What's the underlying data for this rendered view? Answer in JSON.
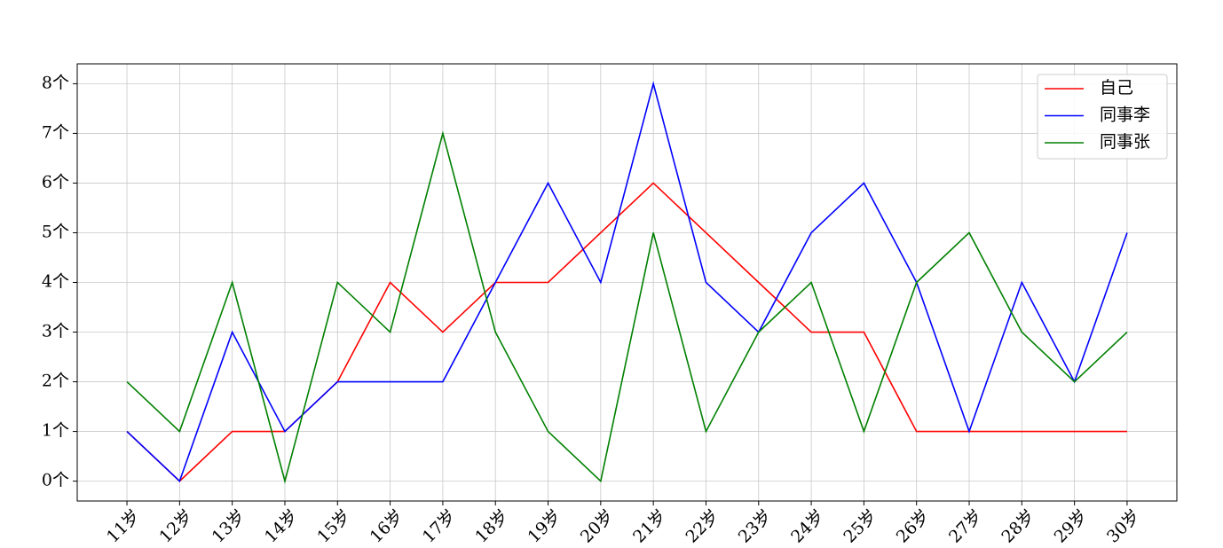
{
  "chart_data": {
    "type": "line",
    "categories": [
      "11岁",
      "12岁",
      "13岁",
      "14岁",
      "15岁",
      "16岁",
      "17岁",
      "18岁",
      "19岁",
      "20岁",
      "21岁",
      "22岁",
      "23岁",
      "24岁",
      "25岁",
      "26岁",
      "27岁",
      "28岁",
      "29岁",
      "30岁"
    ],
    "series": [
      {
        "name": "自己",
        "color": "#ff0000",
        "values": [
          1,
          0,
          1,
          1,
          2,
          4,
          3,
          4,
          4,
          5,
          6,
          5,
          4,
          3,
          3,
          1,
          1,
          1,
          1,
          1
        ]
      },
      {
        "name": "同事李",
        "color": "#0000ff",
        "values": [
          1,
          0,
          3,
          1,
          2,
          2,
          2,
          4,
          6,
          4,
          8,
          4,
          3,
          5,
          6,
          4,
          1,
          4,
          2,
          5
        ]
      },
      {
        "name": "同事张",
        "color": "#008000",
        "values": [
          2,
          1,
          4,
          0,
          4,
          3,
          7,
          3,
          1,
          0,
          5,
          1,
          3,
          4,
          1,
          4,
          5,
          3,
          2,
          3
        ]
      }
    ],
    "ylim": [
      -0.4,
      8.4
    ],
    "yticks": [
      {
        "value": 0,
        "label": "0个"
      },
      {
        "value": 1,
        "label": "1个"
      },
      {
        "value": 2,
        "label": "2个"
      },
      {
        "value": 3,
        "label": "3个"
      },
      {
        "value": 4,
        "label": "4个"
      },
      {
        "value": 5,
        "label": "5个"
      },
      {
        "value": 6,
        "label": "6个"
      },
      {
        "value": 7,
        "label": "7个"
      },
      {
        "value": 8,
        "label": "8个"
      }
    ],
    "grid": true,
    "legend": "upper right"
  }
}
